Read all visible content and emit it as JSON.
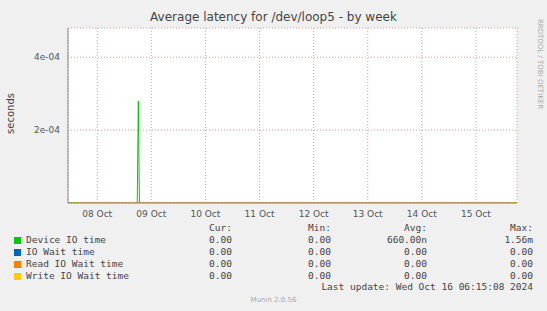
{
  "chart_data": {
    "type": "line",
    "title": "Average latency for /dev/loop5 - by week",
    "y_label": "seconds",
    "side_text": "RRDTOOL / TOBI OETIKER",
    "last_update": "Last update: Wed Oct 16 06:15:08 2024",
    "footer": "Munin 2.0.56",
    "x": [
      7.46,
      8.74,
      8.76,
      8.78,
      15.76
    ],
    "xlim": [
      7.46,
      15.76
    ],
    "xticks": [
      {
        "value": 8,
        "label": "08 Oct"
      },
      {
        "value": 9,
        "label": "09 Oct"
      },
      {
        "value": 10,
        "label": "10 Oct"
      },
      {
        "value": 11,
        "label": "11 Oct"
      },
      {
        "value": 12,
        "label": "12 Oct"
      },
      {
        "value": 13,
        "label": "13 Oct"
      },
      {
        "value": 14,
        "label": "14 Oct"
      },
      {
        "value": 15,
        "label": "15 Oct"
      }
    ],
    "ylim": [
      0,
      0.00048
    ],
    "yticks": [
      {
        "value": 0.0002,
        "label": "2e-04"
      },
      {
        "value": 0.0004,
        "label": "4e-04"
      }
    ],
    "grid": true,
    "stats_columns": [
      "Cur:",
      "Min:",
      "Avg:",
      "Max:"
    ],
    "series": [
      {
        "name": "Device IO time",
        "color": "#00cc00",
        "values": [
          0,
          0,
          0.00028,
          0,
          0
        ],
        "stats": [
          "0.00",
          "0.00",
          "660.00n",
          "1.56m"
        ]
      },
      {
        "name": "IO Wait time",
        "color": "#0066b3",
        "values": [
          0,
          0,
          0,
          0,
          0
        ],
        "stats": [
          "0.00",
          "0.00",
          "0.00",
          "0.00"
        ]
      },
      {
        "name": "Read IO Wait time",
        "color": "#ff8000",
        "values": [
          0,
          0,
          0,
          0,
          0
        ],
        "stats": [
          "0.00",
          "0.00",
          "0.00",
          "0.00"
        ]
      },
      {
        "name": "Write IO Wait time",
        "color": "#ffcc00",
        "values": [
          0,
          0,
          0,
          0,
          0
        ],
        "stats": [
          "0.00",
          "0.00",
          "0.00",
          "0.00"
        ]
      }
    ]
  }
}
